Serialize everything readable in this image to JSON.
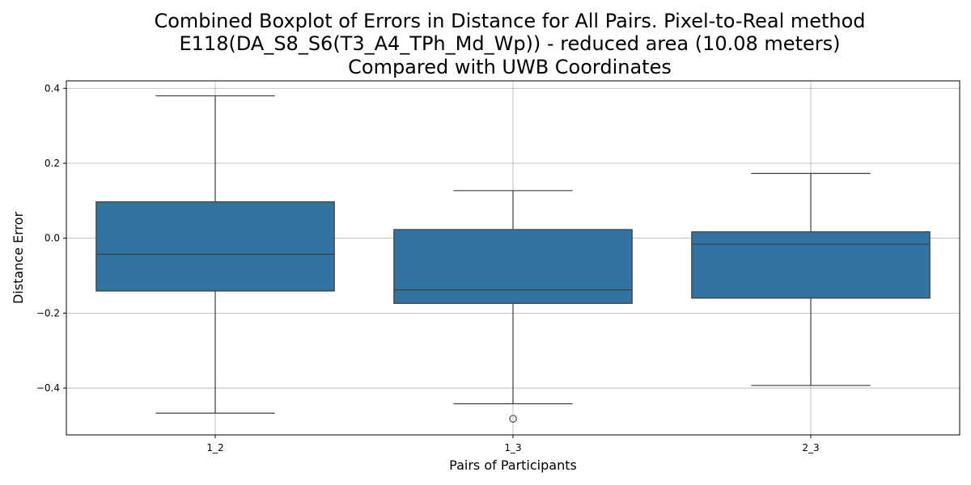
{
  "chart_data": {
    "type": "boxplot",
    "title_lines": [
      "Combined Boxplot of Errors in Distance for All Pairs. Pixel-to-Real method",
      "E118(DA_S8_S6(T3_A4_TPh_Md_Wp)) - reduced area (10.08 meters)",
      "Compared with UWB Coordinates"
    ],
    "xlabel": "Pairs of Participants",
    "ylabel": "Distance Error",
    "ylim": [
      -0.525,
      0.42
    ],
    "yticks": [
      0.4,
      0.2,
      0.0,
      -0.2,
      -0.4
    ],
    "ytick_labels": [
      "0.4",
      "0.2",
      "0.0",
      "−0.2",
      "−0.4"
    ],
    "grid": true,
    "box_color": "#3274a1",
    "edge_color": "#3d3d3d",
    "categories": [
      "1_2",
      "1_3",
      "2_3"
    ],
    "boxes": [
      {
        "category": "1_2",
        "whisker_low": -0.467,
        "q1": -0.141,
        "median": -0.043,
        "q3": 0.097,
        "whisker_high": 0.38,
        "outliers": []
      },
      {
        "category": "1_3",
        "whisker_low": -0.442,
        "q1": -0.174,
        "median": -0.138,
        "q3": 0.023,
        "whisker_high": 0.127,
        "outliers": [
          -0.482
        ]
      },
      {
        "category": "2_3",
        "whisker_low": -0.393,
        "q1": -0.16,
        "median": -0.016,
        "q3": 0.017,
        "whisker_high": 0.173,
        "outliers": []
      }
    ]
  }
}
